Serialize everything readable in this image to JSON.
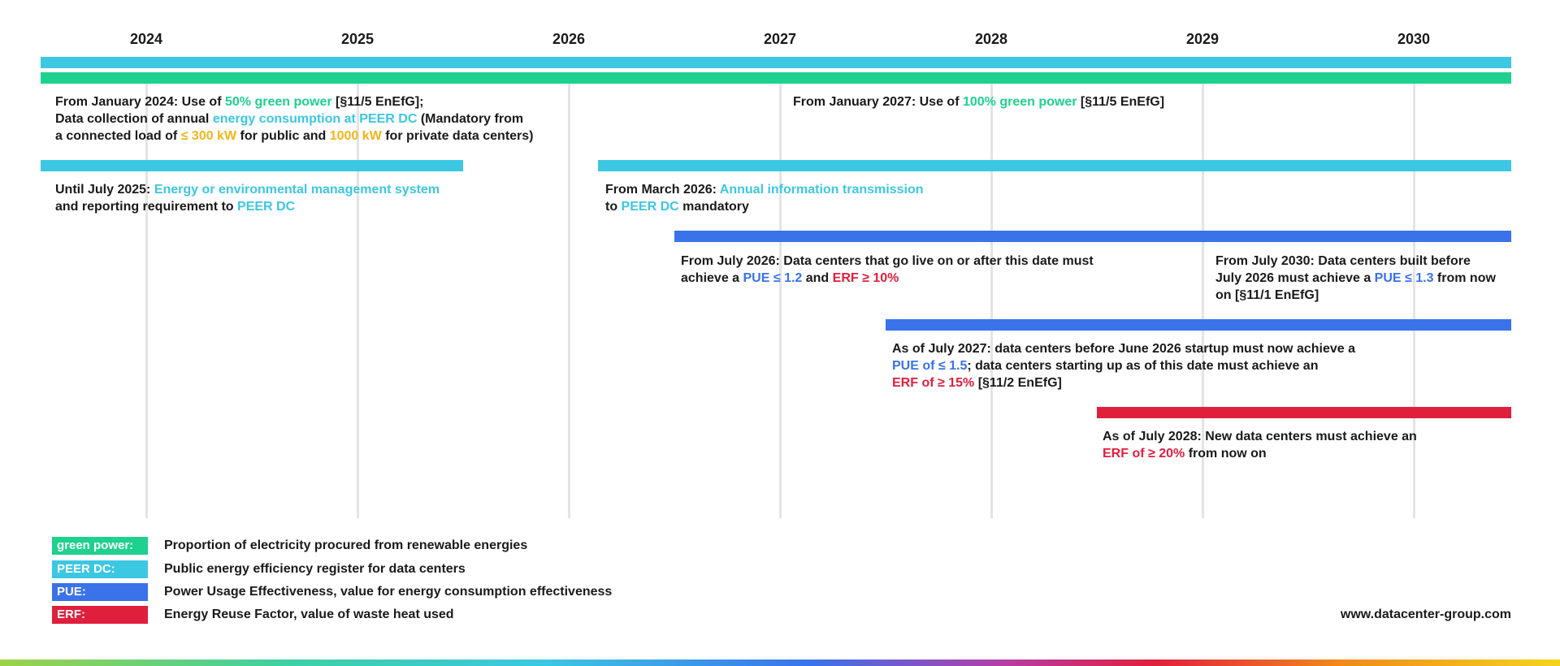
{
  "colors": {
    "green": "#1ed18e",
    "cyan": "#3cc7e2",
    "blue": "#3a72ea",
    "red": "#e01f3d",
    "gold": "#f2b51c",
    "grid": "#e4e4e4"
  },
  "timeline": {
    "years": [
      "2024",
      "2025",
      "2026",
      "2027",
      "2028",
      "2029",
      "2030"
    ],
    "bars": [
      {
        "name": "peer-dc-bar-full",
        "color": "cyan",
        "start": 2023.5,
        "end": 2030.46
      },
      {
        "name": "green-power-bar-full",
        "color": "green",
        "start": 2023.5,
        "end": 2030.46
      },
      {
        "name": "peer-dc-bar-until-2025",
        "color": "cyan",
        "start": 2023.5,
        "end": 2025.5
      },
      {
        "name": "peer-dc-bar-from-2026",
        "color": "cyan",
        "start": 2026.14,
        "end": 2030.46
      },
      {
        "name": "pue-bar-from-july-2026",
        "color": "blue",
        "start": 2026.5,
        "end": 2030.46
      },
      {
        "name": "pue-bar-from-july-2027",
        "color": "blue",
        "start": 2027.5,
        "end": 2030.46
      },
      {
        "name": "erf-bar-from-july-2028",
        "color": "red",
        "start": 2028.5,
        "end": 2030.46
      }
    ]
  },
  "notes": {
    "jan2024": {
      "l1a": "From January 2024: Use of ",
      "l1b": "50% green power",
      "l1c": " [§11/5 EnEfG];",
      "l2a": "Data collection of annual ",
      "l2b": "energy consumption at PEER DC",
      "l2c": " (Mandatory from",
      "l3a": "a connected load of ",
      "l3b": "≤ 300 kW",
      "l3c": " for public and ",
      "l3d": "1000 kW",
      "l3e": " for private data centers)"
    },
    "jan2027": {
      "l1a": "From January 2027: Use of ",
      "l1b": "100% green power",
      "l1c": " [§11/5 EnEfG]"
    },
    "jul2025": {
      "l1a": "Until July 2025: ",
      "l1b": "Energy or environmental management system",
      "l2a": "and reporting requirement to ",
      "l2b": "PEER DC"
    },
    "mar2026": {
      "l1a": "From March 2026: ",
      "l1b": "Annual information transmission",
      "l2a": "to ",
      "l2b": "PEER DC",
      "l2c": " mandatory"
    },
    "jul2026": {
      "l1": "From July 2026: Data centers that go live on or after this date must",
      "l2a": "achieve a ",
      "l2b": "PUE ≤ 1.2",
      "l2c": " and ",
      "l2d": "ERF ≥ 10%"
    },
    "jul2030": {
      "l1": "From July 2030: Data centers built before",
      "l2a": "July 2026 must achieve a ",
      "l2b": "PUE ≤ 1.3",
      "l2c": " from now",
      "l3": "on [§11/1 EnEfG]"
    },
    "jul2027": {
      "l1": "As of July 2027: data centers before June 2026 startup must now achieve a",
      "l2a": "PUE of ≤ 1.5",
      "l2b": "; data centers starting up as of this date must achieve an",
      "l3a": "ERF of ≥ 15%",
      "l3b": " [§11/2 EnEfG]"
    },
    "jul2028": {
      "l1": "As of July 2028: New data centers must achieve an",
      "l2a": "ERF of ≥ 20%",
      "l2b": " from now on"
    }
  },
  "legend": [
    {
      "key": "green power:",
      "color": "green",
      "desc": "Proportion of electricity procured from renewable energies"
    },
    {
      "key": "PEER DC:",
      "color": "cyan",
      "desc": "Public energy efficiency register for data centers"
    },
    {
      "key": "PUE:",
      "color": "blue",
      "desc": "Power Usage Effectiveness, value for energy consumption effectiveness"
    },
    {
      "key": "ERF:",
      "color": "red",
      "desc": "Energy Reuse Factor, value of waste heat used"
    }
  ],
  "website": "www.datacenter-group.com"
}
